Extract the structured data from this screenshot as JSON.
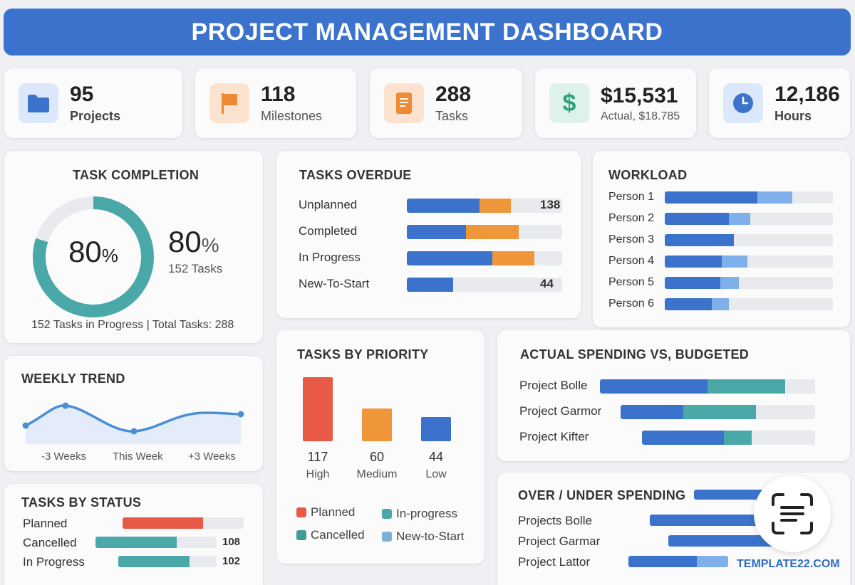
{
  "header": {
    "title": "PROJECT MANAGEMENT DASHBOARD"
  },
  "kpis": [
    {
      "icon": "folder-icon",
      "value": "95",
      "label": "Projects",
      "color": "#3b73cc",
      "bg": "#dbe8fa"
    },
    {
      "icon": "flag-icon",
      "value": "118",
      "label": "Milestones",
      "color": "#ee8a33",
      "bg": "#fbe3cf"
    },
    {
      "icon": "document-icon",
      "value": "288",
      "label": "Tasks",
      "color": "#ee8a33",
      "bg": "#fbe3cf"
    },
    {
      "icon": "dollar-icon",
      "value": "$15,531",
      "label": "Actual, $18.785",
      "color": "#2aa37f",
      "bg": "#dff2ea"
    },
    {
      "icon": "clock-icon",
      "value": "12,186",
      "label": "Hours",
      "color": "#3b73cc",
      "bg": "#dbe8fa"
    }
  ],
  "task_completion": {
    "title": "TASK COMPLETION",
    "percent": 80,
    "ring_value": "80",
    "ring_unit": "%",
    "big_value": "80",
    "big_unit": "%",
    "sub_label": "152 Tasks",
    "footer": "152 Tasks in Progress | Total Tasks: 288"
  },
  "tasks_overdue": {
    "title": "TASKS OVERDUE",
    "rows": [
      {
        "label": "Unplanned",
        "blue": 0.47,
        "orange": 0.2,
        "value": "138"
      },
      {
        "label": "Completed",
        "blue": 0.38,
        "orange": 0.34,
        "value": ""
      },
      {
        "label": "In Progress",
        "blue": 0.55,
        "orange": 0.27,
        "value": ""
      },
      {
        "label": "New-To-Start",
        "blue": 0.3,
        "orange": 0,
        "value": "44"
      }
    ]
  },
  "workload": {
    "title": "WORKLOAD",
    "rows": [
      {
        "label": "Person 1",
        "dark": 0.55,
        "light": 0.21
      },
      {
        "label": "Person 2",
        "dark": 0.38,
        "light": 0.13
      },
      {
        "label": "Person 3",
        "dark": 0.41,
        "light": 0
      },
      {
        "label": "Person 4",
        "dark": 0.34,
        "light": 0.15
      },
      {
        "label": "Person 5",
        "dark": 0.33,
        "light": 0.11
      },
      {
        "label": "Person 6",
        "dark": 0.28,
        "light": 0.1
      }
    ]
  },
  "weekly_trend": {
    "title": "WEEKLY TREND",
    "x_labels": [
      "-3 Weeks",
      "This Week",
      "+3 Weeks"
    ]
  },
  "tasks_by_priority": {
    "title": "TASKS BY PRIORITY",
    "bars": [
      {
        "value": "117",
        "label": "High",
        "num": 117,
        "color": "#e85a45"
      },
      {
        "value": "60",
        "label": "Medium",
        "num": 60,
        "color": "#f0963a"
      },
      {
        "value": "44",
        "label": "Low",
        "num": 44,
        "color": "#3b73cc"
      }
    ],
    "legend": [
      {
        "label": "Planned",
        "color": "#e85a45"
      },
      {
        "label": "In-progress",
        "color": "#4aa9a8"
      },
      {
        "label": "Cancelled",
        "color": "#3e9e96"
      },
      {
        "label": "New-to-Start",
        "color": "#7fb0d8"
      }
    ]
  },
  "actual_vs_budget": {
    "title": "ACTUAL SPENDING VS, BUDGETED",
    "rows": [
      {
        "label": "Project Bolle",
        "blue": 0.5,
        "teal": 0.36
      },
      {
        "label": "Project Garmor",
        "blue": 0.29,
        "teal": 0.34
      },
      {
        "label": "Project Kifter",
        "blue": 0.38,
        "teal": 0.13
      }
    ]
  },
  "tasks_by_status": {
    "title": "TASKS BY STATUS",
    "rows": [
      {
        "label": "Planned",
        "value": ""
      },
      {
        "label": "Cancelled",
        "value": "108"
      },
      {
        "label": "In Progress",
        "value": "102"
      }
    ]
  },
  "over_under": {
    "title": "OVER / UNDER SPENDING",
    "rows": [
      {
        "label": "Projects Bolle"
      },
      {
        "label": "Project Garmar"
      },
      {
        "label": "Project Lattor"
      }
    ]
  },
  "watermark": "TEMPLATE22.COM",
  "colors": {
    "blue": "#3b73cc",
    "light_blue": "#7fb0ea",
    "orange": "#f0963a",
    "teal": "#4aa9a8",
    "red": "#e85a45"
  }
}
